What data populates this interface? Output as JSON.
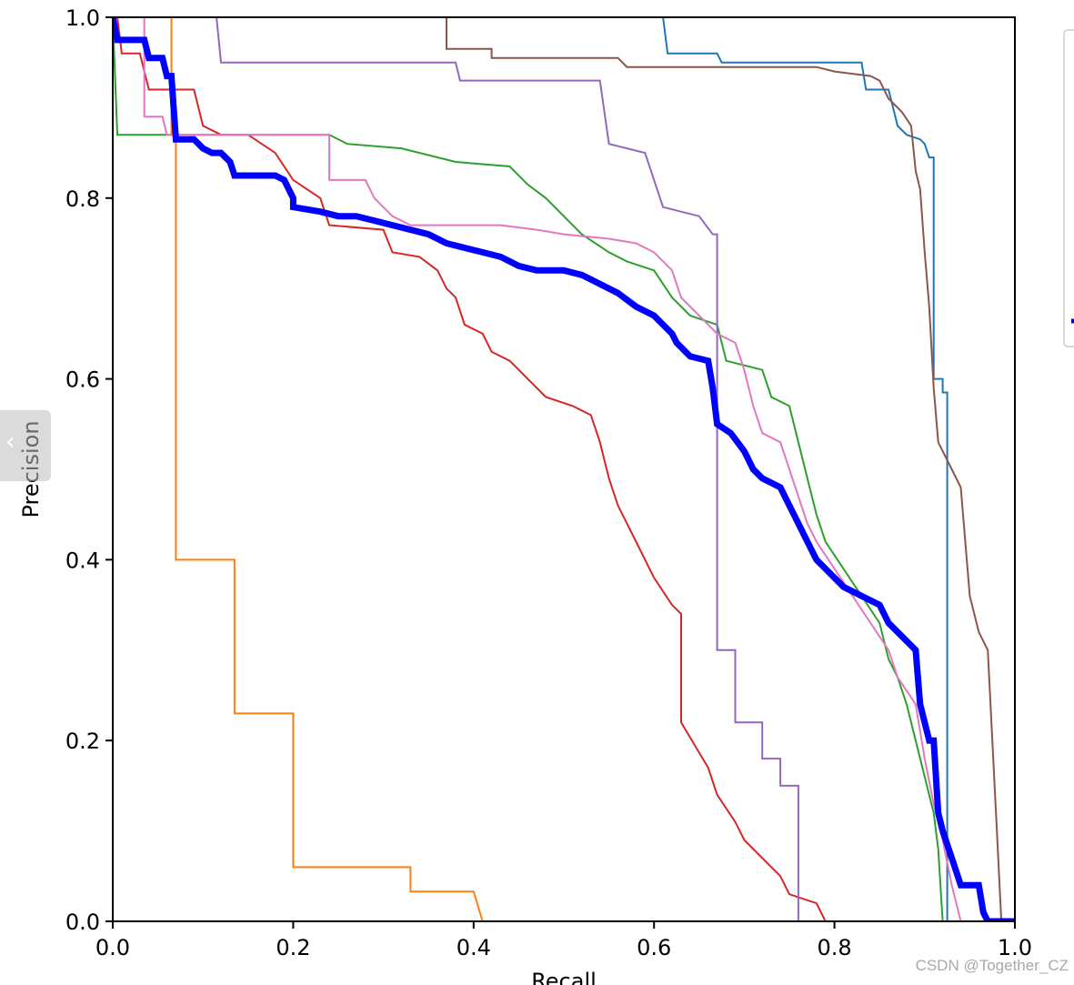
{
  "chart_data": {
    "type": "line",
    "title": "",
    "xlabel": "Recall",
    "ylabel": "Precision",
    "xlim": [
      0,
      1
    ],
    "ylim": [
      0,
      1
    ],
    "xticks": [
      "0.0",
      "0.2",
      "0.4",
      "0.6",
      "0.8",
      "1.0"
    ],
    "yticks": [
      "0.0",
      "0.2",
      "0.4",
      "0.6",
      "0.8",
      "1.0"
    ],
    "grid": false,
    "legend_placement": "right (outside, clipped)",
    "series": [
      {
        "color": "#1f77b4",
        "width": 2,
        "points": [
          [
            0.61,
            1.0
          ],
          [
            0.615,
            0.96
          ],
          [
            0.67,
            0.96
          ],
          [
            0.675,
            0.95
          ],
          [
            0.79,
            0.95
          ],
          [
            0.795,
            0.95
          ],
          [
            0.83,
            0.95
          ],
          [
            0.835,
            0.92
          ],
          [
            0.86,
            0.92
          ],
          [
            0.87,
            0.88
          ],
          [
            0.88,
            0.87
          ],
          [
            0.895,
            0.865
          ],
          [
            0.9,
            0.86
          ],
          [
            0.905,
            0.845
          ],
          [
            0.91,
            0.845
          ],
          [
            0.91,
            0.6
          ],
          [
            0.92,
            0.6
          ],
          [
            0.92,
            0.585
          ],
          [
            0.925,
            0.585
          ],
          [
            0.925,
            0.0
          ]
        ]
      },
      {
        "color": "#ff7f0e",
        "width": 2,
        "points": [
          [
            0.065,
            1.0
          ],
          [
            0.065,
            0.87
          ],
          [
            0.07,
            0.87
          ],
          [
            0.07,
            0.4
          ],
          [
            0.135,
            0.4
          ],
          [
            0.135,
            0.23
          ],
          [
            0.2,
            0.23
          ],
          [
            0.2,
            0.06
          ],
          [
            0.33,
            0.06
          ],
          [
            0.33,
            0.033
          ],
          [
            0.4,
            0.033
          ],
          [
            0.41,
            0.0
          ],
          [
            1.0,
            0.0
          ]
        ]
      },
      {
        "color": "#2ca02c",
        "width": 2,
        "points": [
          [
            0.0,
            1.0
          ],
          [
            0.005,
            0.87
          ],
          [
            0.24,
            0.87
          ],
          [
            0.26,
            0.86
          ],
          [
            0.32,
            0.855
          ],
          [
            0.38,
            0.84
          ],
          [
            0.44,
            0.835
          ],
          [
            0.46,
            0.815
          ],
          [
            0.48,
            0.8
          ],
          [
            0.5,
            0.78
          ],
          [
            0.52,
            0.76
          ],
          [
            0.55,
            0.74
          ],
          [
            0.57,
            0.73
          ],
          [
            0.6,
            0.72
          ],
          [
            0.62,
            0.69
          ],
          [
            0.64,
            0.67
          ],
          [
            0.67,
            0.66
          ],
          [
            0.68,
            0.62
          ],
          [
            0.72,
            0.61
          ],
          [
            0.73,
            0.58
          ],
          [
            0.75,
            0.57
          ],
          [
            0.76,
            0.53
          ],
          [
            0.77,
            0.49
          ],
          [
            0.78,
            0.45
          ],
          [
            0.79,
            0.42
          ],
          [
            0.81,
            0.39
          ],
          [
            0.83,
            0.36
          ],
          [
            0.85,
            0.33
          ],
          [
            0.86,
            0.29
          ],
          [
            0.87,
            0.27
          ],
          [
            0.88,
            0.24
          ],
          [
            0.89,
            0.2
          ],
          [
            0.9,
            0.16
          ],
          [
            0.91,
            0.12
          ],
          [
            0.915,
            0.08
          ],
          [
            0.92,
            0.0
          ]
        ]
      },
      {
        "color": "#d62728",
        "width": 2,
        "points": [
          [
            0.0,
            1.0
          ],
          [
            0.005,
            1.0
          ],
          [
            0.01,
            0.96
          ],
          [
            0.03,
            0.96
          ],
          [
            0.04,
            0.92
          ],
          [
            0.09,
            0.92
          ],
          [
            0.1,
            0.88
          ],
          [
            0.12,
            0.87
          ],
          [
            0.15,
            0.87
          ],
          [
            0.18,
            0.85
          ],
          [
            0.2,
            0.82
          ],
          [
            0.23,
            0.8
          ],
          [
            0.24,
            0.77
          ],
          [
            0.3,
            0.765
          ],
          [
            0.31,
            0.74
          ],
          [
            0.34,
            0.735
          ],
          [
            0.36,
            0.72
          ],
          [
            0.37,
            0.7
          ],
          [
            0.38,
            0.69
          ],
          [
            0.39,
            0.66
          ],
          [
            0.41,
            0.65
          ],
          [
            0.42,
            0.63
          ],
          [
            0.44,
            0.62
          ],
          [
            0.46,
            0.6
          ],
          [
            0.48,
            0.58
          ],
          [
            0.51,
            0.57
          ],
          [
            0.53,
            0.56
          ],
          [
            0.54,
            0.53
          ],
          [
            0.55,
            0.49
          ],
          [
            0.56,
            0.46
          ],
          [
            0.57,
            0.44
          ],
          [
            0.58,
            0.42
          ],
          [
            0.6,
            0.38
          ],
          [
            0.62,
            0.35
          ],
          [
            0.63,
            0.34
          ],
          [
            0.63,
            0.22
          ],
          [
            0.66,
            0.17
          ],
          [
            0.67,
            0.14
          ],
          [
            0.69,
            0.11
          ],
          [
            0.7,
            0.09
          ],
          [
            0.72,
            0.07
          ],
          [
            0.73,
            0.06
          ],
          [
            0.74,
            0.05
          ],
          [
            0.75,
            0.03
          ],
          [
            0.78,
            0.02
          ],
          [
            0.79,
            0.0
          ]
        ]
      },
      {
        "color": "#9467bd",
        "width": 2,
        "points": [
          [
            0.115,
            1.0
          ],
          [
            0.12,
            0.95
          ],
          [
            0.38,
            0.95
          ],
          [
            0.385,
            0.93
          ],
          [
            0.54,
            0.93
          ],
          [
            0.55,
            0.86
          ],
          [
            0.59,
            0.85
          ],
          [
            0.6,
            0.82
          ],
          [
            0.61,
            0.79
          ],
          [
            0.65,
            0.78
          ],
          [
            0.665,
            0.76
          ],
          [
            0.67,
            0.76
          ],
          [
            0.67,
            0.3
          ],
          [
            0.69,
            0.3
          ],
          [
            0.69,
            0.22
          ],
          [
            0.72,
            0.22
          ],
          [
            0.72,
            0.18
          ],
          [
            0.74,
            0.18
          ],
          [
            0.74,
            0.15
          ],
          [
            0.76,
            0.15
          ],
          [
            0.76,
            0.0
          ]
        ]
      },
      {
        "color": "#8c564b",
        "width": 2,
        "points": [
          [
            0.37,
            1.0
          ],
          [
            0.37,
            0.965
          ],
          [
            0.42,
            0.965
          ],
          [
            0.42,
            0.955
          ],
          [
            0.56,
            0.955
          ],
          [
            0.57,
            0.945
          ],
          [
            0.78,
            0.945
          ],
          [
            0.8,
            0.94
          ],
          [
            0.84,
            0.935
          ],
          [
            0.85,
            0.93
          ],
          [
            0.86,
            0.91
          ],
          [
            0.875,
            0.895
          ],
          [
            0.885,
            0.88
          ],
          [
            0.89,
            0.83
          ],
          [
            0.895,
            0.81
          ],
          [
            0.9,
            0.74
          ],
          [
            0.905,
            0.68
          ],
          [
            0.91,
            0.59
          ],
          [
            0.915,
            0.53
          ],
          [
            0.93,
            0.5
          ],
          [
            0.94,
            0.48
          ],
          [
            0.95,
            0.36
          ],
          [
            0.96,
            0.32
          ],
          [
            0.97,
            0.3
          ],
          [
            0.975,
            0.2
          ],
          [
            0.98,
            0.1
          ],
          [
            0.985,
            0.0
          ]
        ]
      },
      {
        "color": "#e377c2",
        "width": 2,
        "points": [
          [
            0.035,
            1.0
          ],
          [
            0.035,
            0.89
          ],
          [
            0.055,
            0.89
          ],
          [
            0.06,
            0.87
          ],
          [
            0.24,
            0.87
          ],
          [
            0.24,
            0.82
          ],
          [
            0.28,
            0.82
          ],
          [
            0.29,
            0.8
          ],
          [
            0.31,
            0.78
          ],
          [
            0.33,
            0.77
          ],
          [
            0.43,
            0.77
          ],
          [
            0.47,
            0.765
          ],
          [
            0.5,
            0.76
          ],
          [
            0.55,
            0.755
          ],
          [
            0.58,
            0.75
          ],
          [
            0.6,
            0.74
          ],
          [
            0.62,
            0.72
          ],
          [
            0.63,
            0.69
          ],
          [
            0.65,
            0.67
          ],
          [
            0.67,
            0.65
          ],
          [
            0.69,
            0.64
          ],
          [
            0.7,
            0.61
          ],
          [
            0.71,
            0.57
          ],
          [
            0.72,
            0.54
          ],
          [
            0.74,
            0.53
          ],
          [
            0.75,
            0.5
          ],
          [
            0.76,
            0.47
          ],
          [
            0.77,
            0.44
          ],
          [
            0.78,
            0.42
          ],
          [
            0.8,
            0.39
          ],
          [
            0.82,
            0.36
          ],
          [
            0.84,
            0.33
          ],
          [
            0.86,
            0.3
          ],
          [
            0.87,
            0.27
          ],
          [
            0.89,
            0.24
          ],
          [
            0.9,
            0.18
          ],
          [
            0.91,
            0.13
          ],
          [
            0.92,
            0.09
          ],
          [
            0.93,
            0.04
          ],
          [
            0.94,
            0.0
          ]
        ]
      },
      {
        "color": "#0000ff",
        "width": 7,
        "points": [
          [
            0.0,
            1.0
          ],
          [
            0.005,
            0.975
          ],
          [
            0.035,
            0.975
          ],
          [
            0.04,
            0.955
          ],
          [
            0.055,
            0.955
          ],
          [
            0.06,
            0.935
          ],
          [
            0.065,
            0.935
          ],
          [
            0.07,
            0.865
          ],
          [
            0.09,
            0.865
          ],
          [
            0.1,
            0.855
          ],
          [
            0.11,
            0.85
          ],
          [
            0.12,
            0.85
          ],
          [
            0.13,
            0.84
          ],
          [
            0.135,
            0.825
          ],
          [
            0.18,
            0.825
          ],
          [
            0.19,
            0.82
          ],
          [
            0.2,
            0.8
          ],
          [
            0.2,
            0.79
          ],
          [
            0.23,
            0.785
          ],
          [
            0.25,
            0.78
          ],
          [
            0.27,
            0.78
          ],
          [
            0.29,
            0.775
          ],
          [
            0.31,
            0.77
          ],
          [
            0.33,
            0.765
          ],
          [
            0.35,
            0.76
          ],
          [
            0.37,
            0.75
          ],
          [
            0.39,
            0.745
          ],
          [
            0.41,
            0.74
          ],
          [
            0.43,
            0.735
          ],
          [
            0.45,
            0.725
          ],
          [
            0.47,
            0.72
          ],
          [
            0.5,
            0.72
          ],
          [
            0.52,
            0.715
          ],
          [
            0.54,
            0.705
          ],
          [
            0.56,
            0.695
          ],
          [
            0.58,
            0.68
          ],
          [
            0.6,
            0.67
          ],
          [
            0.62,
            0.65
          ],
          [
            0.625,
            0.64
          ],
          [
            0.64,
            0.625
          ],
          [
            0.66,
            0.62
          ],
          [
            0.665,
            0.59
          ],
          [
            0.67,
            0.55
          ],
          [
            0.685,
            0.54
          ],
          [
            0.7,
            0.52
          ],
          [
            0.71,
            0.5
          ],
          [
            0.72,
            0.49
          ],
          [
            0.74,
            0.48
          ],
          [
            0.75,
            0.46
          ],
          [
            0.76,
            0.44
          ],
          [
            0.77,
            0.42
          ],
          [
            0.78,
            0.4
          ],
          [
            0.79,
            0.39
          ],
          [
            0.81,
            0.37
          ],
          [
            0.83,
            0.36
          ],
          [
            0.85,
            0.35
          ],
          [
            0.86,
            0.33
          ],
          [
            0.87,
            0.32
          ],
          [
            0.89,
            0.3
          ],
          [
            0.895,
            0.24
          ],
          [
            0.905,
            0.2
          ],
          [
            0.91,
            0.2
          ],
          [
            0.915,
            0.12
          ],
          [
            0.92,
            0.1
          ],
          [
            0.93,
            0.07
          ],
          [
            0.94,
            0.04
          ],
          [
            0.96,
            0.04
          ],
          [
            0.965,
            0.01
          ],
          [
            0.97,
            0.0
          ],
          [
            1.0,
            0.0
          ]
        ]
      }
    ]
  },
  "nav": {
    "chevron": "‹"
  },
  "watermark": "CSDN @Together_CZ"
}
